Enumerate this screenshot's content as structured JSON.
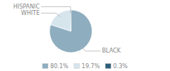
{
  "chart_data": {
    "type": "pie",
    "categories": [
      "BLACK",
      "WHITE",
      "HISPANIC"
    ],
    "values": [
      80.1,
      19.7,
      0.3
    ],
    "value_labels": [
      "80.1%",
      "19.7%",
      "0.3%"
    ],
    "colors": [
      "#8eadbf",
      "#d6e4ec",
      "#2e5f7c"
    ],
    "legend": "bottom"
  }
}
